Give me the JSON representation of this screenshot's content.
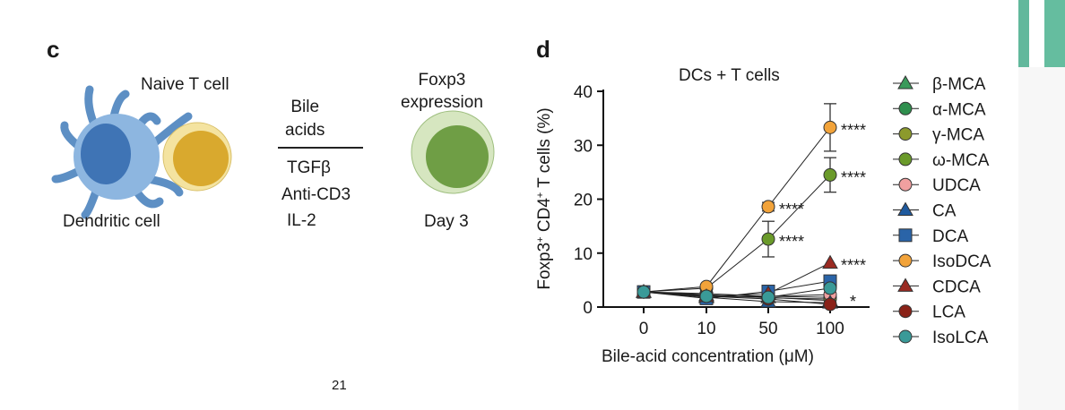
{
  "panel_c": {
    "label": "c",
    "naive_t_cell": "Naive T cell",
    "dendritic_cell": "Dendritic cell",
    "bile_acids": "Bile\nacids",
    "conditions": [
      "TGFβ",
      "Anti-CD3",
      "IL-2"
    ],
    "foxp3": "Foxp3\nexpression",
    "day": "Day 3"
  },
  "panel_d": {
    "label": "d"
  },
  "page_number": "21",
  "chart_data": {
    "type": "line",
    "title": "DCs + T cells",
    "xlabel": "Bile-acid concentration (μM)",
    "ylabel": "Foxp3+ CD4+ T cells (%)",
    "categories": [
      "0",
      "10",
      "50",
      "100"
    ],
    "ylim": [
      0,
      40
    ],
    "yticks": [
      "0",
      "10",
      "20",
      "30",
      "40"
    ],
    "legend_position": "right",
    "series": [
      {
        "name": "β-MCA",
        "marker": "triangle",
        "color": "#3a9a5b",
        "values": [
          2.8,
          2.2,
          1.8,
          1.2
        ]
      },
      {
        "name": "α-MCA",
        "marker": "circle",
        "color": "#2f8f4e",
        "values": [
          2.8,
          2.5,
          2.0,
          1.8
        ]
      },
      {
        "name": "γ-MCA",
        "marker": "circle",
        "color": "#8c9a2c",
        "values": [
          2.8,
          2.3,
          1.7,
          1.5
        ]
      },
      {
        "name": "ω-MCA",
        "marker": "circle",
        "color": "#6a9a2a",
        "values": [
          2.8,
          3.5,
          12.6,
          24.5
        ],
        "errors": [
          0,
          0,
          3.3,
          3.2
        ]
      },
      {
        "name": "UDCA",
        "marker": "circle",
        "color": "#f0a0a0",
        "values": [
          2.8,
          2.0,
          2.0,
          2.3
        ]
      },
      {
        "name": "CA",
        "marker": "triangle",
        "color": "#1f5a9e",
        "values": [
          2.8,
          1.8,
          1.0,
          0.8
        ]
      },
      {
        "name": "DCA",
        "marker": "square",
        "color": "#2a64a8",
        "values": [
          2.8,
          1.6,
          2.9,
          4.8
        ]
      },
      {
        "name": "IsoDCA",
        "marker": "circle",
        "color": "#f2a33a",
        "values": [
          2.8,
          3.8,
          18.6,
          33.3
        ],
        "errors": [
          0,
          0,
          0.8,
          4.4
        ]
      },
      {
        "name": "CDCA",
        "marker": "triangle",
        "color": "#9a2a22",
        "values": [
          2.8,
          2.0,
          2.5,
          8.2
        ]
      },
      {
        "name": "LCA",
        "marker": "circle",
        "color": "#8a2218",
        "values": [
          2.8,
          2.0,
          1.5,
          0.5
        ]
      },
      {
        "name": "IsoLCA",
        "marker": "circle",
        "color": "#3a9a98",
        "values": [
          2.8,
          2.0,
          1.8,
          3.5
        ]
      }
    ],
    "annotations": [
      {
        "text": "****",
        "series": "IsoDCA",
        "x": "100"
      },
      {
        "text": "****",
        "series": "ω-MCA",
        "x": "100"
      },
      {
        "text": "****",
        "series": "IsoDCA",
        "x": "50"
      },
      {
        "text": "****",
        "series": "ω-MCA",
        "x": "50"
      },
      {
        "text": "****",
        "series": "CDCA",
        "x": "100"
      },
      {
        "text": "*",
        "series": "UDCA",
        "x": "100"
      }
    ]
  }
}
